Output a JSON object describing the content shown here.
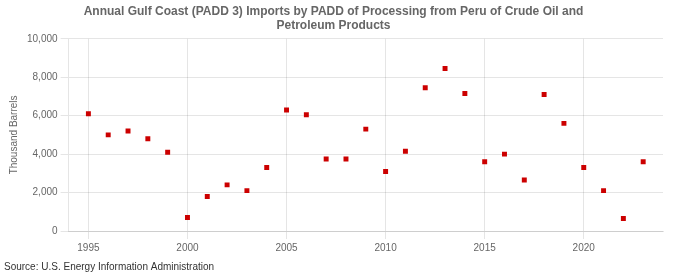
{
  "chart_data": {
    "type": "scatter",
    "title": "Annual Gulf Coast (PADD 3) Imports by PADD of Processing from Peru of Crude Oil and\nPetroleum Products",
    "ylabel": "Thousand Barrels",
    "source": "Source: U.S. Energy Information Administration",
    "x": [
      1995,
      1996,
      1997,
      1998,
      1999,
      2000,
      2001,
      2002,
      2003,
      2004,
      2005,
      2006,
      2007,
      2008,
      2009,
      2010,
      2011,
      2012,
      2013,
      2014,
      2015,
      2016,
      2017,
      2018,
      2019,
      2020,
      2021,
      2022,
      2023
    ],
    "values": [
      6100,
      5000,
      5200,
      4800,
      4100,
      700,
      1800,
      2400,
      2100,
      3300,
      6300,
      6050,
      3750,
      3750,
      5300,
      3100,
      4150,
      7450,
      8450,
      7150,
      3600,
      4000,
      2650,
      7100,
      5600,
      3300,
      2100,
      650,
      3600
    ],
    "color": "#cc0000",
    "marker": "square",
    "xlim": [
      1994,
      2024
    ],
    "xticks": [
      1995,
      2000,
      2005,
      2010,
      2015,
      2020
    ],
    "ylim": [
      0,
      10000
    ],
    "yticks": [
      0,
      {
        "value": 2000,
        "label": "2,000"
      },
      {
        "value": 4000,
        "label": "4,000"
      },
      {
        "value": 6000,
        "label": "6,000"
      },
      {
        "value": 8000,
        "label": "8,000"
      },
      {
        "value": 10000,
        "label": "10,000"
      }
    ],
    "grid": true
  }
}
